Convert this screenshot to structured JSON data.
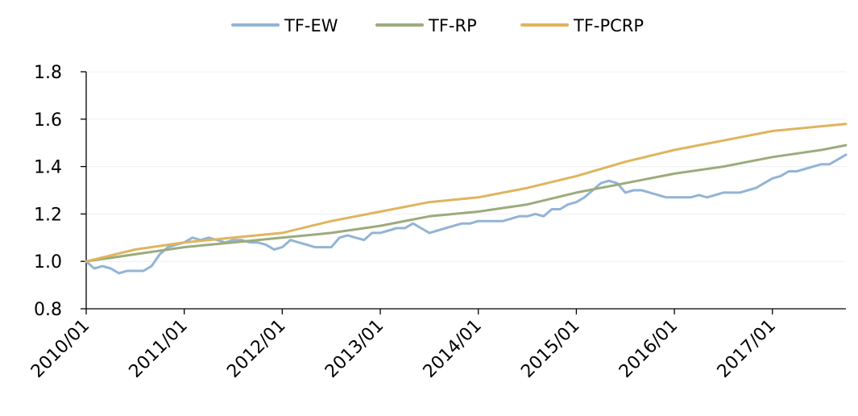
{
  "chart_data": {
    "type": "line",
    "title": "",
    "xlabel": "",
    "ylabel": "",
    "x_ticks": [
      "2010/01",
      "2011/01",
      "2012/01",
      "2013/01",
      "2014/01",
      "2015/01",
      "2016/01",
      "2017/01"
    ],
    "x_range": [
      "2010/01",
      "2017/10"
    ],
    "ylim": [
      0.8,
      1.8
    ],
    "y_ticks": [
      "0.8",
      "1.0",
      "1.2",
      "1.4",
      "1.6",
      "1.8"
    ],
    "grid": "horizontal",
    "legend_position": "top",
    "series": [
      {
        "name": "TF-EW",
        "color": "#93b4d4",
        "x": [
          "2010/01",
          "2010/02",
          "2010/03",
          "2010/04",
          "2010/05",
          "2010/06",
          "2010/07",
          "2010/08",
          "2010/09",
          "2010/10",
          "2010/11",
          "2010/12",
          "2011/01",
          "2011/02",
          "2011/03",
          "2011/04",
          "2011/05",
          "2011/06",
          "2011/07",
          "2011/08",
          "2011/09",
          "2011/10",
          "2011/11",
          "2011/12",
          "2012/01",
          "2012/02",
          "2012/03",
          "2012/04",
          "2012/05",
          "2012/06",
          "2012/07",
          "2012/08",
          "2012/09",
          "2012/10",
          "2012/11",
          "2012/12",
          "2013/01",
          "2013/02",
          "2013/03",
          "2013/04",
          "2013/05",
          "2013/06",
          "2013/07",
          "2013/08",
          "2013/09",
          "2013/10",
          "2013/11",
          "2013/12",
          "2014/01",
          "2014/02",
          "2014/03",
          "2014/04",
          "2014/05",
          "2014/06",
          "2014/07",
          "2014/08",
          "2014/09",
          "2014/10",
          "2014/11",
          "2014/12",
          "2015/01",
          "2015/02",
          "2015/03",
          "2015/04",
          "2015/05",
          "2015/06",
          "2015/07",
          "2015/08",
          "2015/09",
          "2015/10",
          "2015/11",
          "2015/12",
          "2016/01",
          "2016/02",
          "2016/03",
          "2016/04",
          "2016/05",
          "2016/06",
          "2016/07",
          "2016/08",
          "2016/09",
          "2016/10",
          "2016/11",
          "2016/12",
          "2017/01",
          "2017/02",
          "2017/03",
          "2017/04",
          "2017/05",
          "2017/06",
          "2017/07",
          "2017/08",
          "2017/09",
          "2017/10"
        ],
        "values": [
          1.0,
          0.97,
          0.98,
          0.97,
          0.95,
          0.96,
          0.96,
          0.96,
          0.98,
          1.03,
          1.06,
          1.07,
          1.08,
          1.1,
          1.09,
          1.1,
          1.09,
          1.08,
          1.09,
          1.09,
          1.08,
          1.08,
          1.07,
          1.05,
          1.06,
          1.09,
          1.08,
          1.07,
          1.06,
          1.06,
          1.06,
          1.1,
          1.11,
          1.1,
          1.09,
          1.12,
          1.12,
          1.13,
          1.14,
          1.14,
          1.16,
          1.14,
          1.12,
          1.13,
          1.14,
          1.15,
          1.16,
          1.16,
          1.17,
          1.17,
          1.17,
          1.17,
          1.18,
          1.19,
          1.19,
          1.2,
          1.19,
          1.22,
          1.22,
          1.24,
          1.25,
          1.27,
          1.3,
          1.33,
          1.34,
          1.33,
          1.29,
          1.3,
          1.3,
          1.29,
          1.28,
          1.27,
          1.27,
          1.27,
          1.27,
          1.28,
          1.27,
          1.28,
          1.29,
          1.29,
          1.29,
          1.3,
          1.31,
          1.33,
          1.35,
          1.36,
          1.38,
          1.38,
          1.39,
          1.4,
          1.41,
          1.41,
          1.43,
          1.45
        ]
      },
      {
        "name": "TF-RP",
        "color": "#9cab7c",
        "x": [
          "2010/01",
          "2010/07",
          "2011/01",
          "2011/07",
          "2012/01",
          "2012/07",
          "2013/01",
          "2013/07",
          "2014/01",
          "2014/07",
          "2015/01",
          "2015/07",
          "2016/01",
          "2016/07",
          "2017/01",
          "2017/07",
          "2017/10"
        ],
        "values": [
          1.0,
          1.03,
          1.06,
          1.08,
          1.1,
          1.12,
          1.15,
          1.19,
          1.21,
          1.24,
          1.29,
          1.33,
          1.37,
          1.4,
          1.44,
          1.47,
          1.49
        ]
      },
      {
        "name": "TF-PCRP",
        "color": "#e0b45e",
        "x": [
          "2010/01",
          "2010/07",
          "2011/01",
          "2011/07",
          "2012/01",
          "2012/07",
          "2013/01",
          "2013/07",
          "2014/01",
          "2014/07",
          "2015/01",
          "2015/07",
          "2016/01",
          "2016/07",
          "2017/01",
          "2017/07",
          "2017/10"
        ],
        "values": [
          1.0,
          1.05,
          1.08,
          1.1,
          1.12,
          1.17,
          1.21,
          1.25,
          1.27,
          1.31,
          1.36,
          1.42,
          1.47,
          1.51,
          1.55,
          1.57,
          1.58
        ]
      }
    ]
  }
}
